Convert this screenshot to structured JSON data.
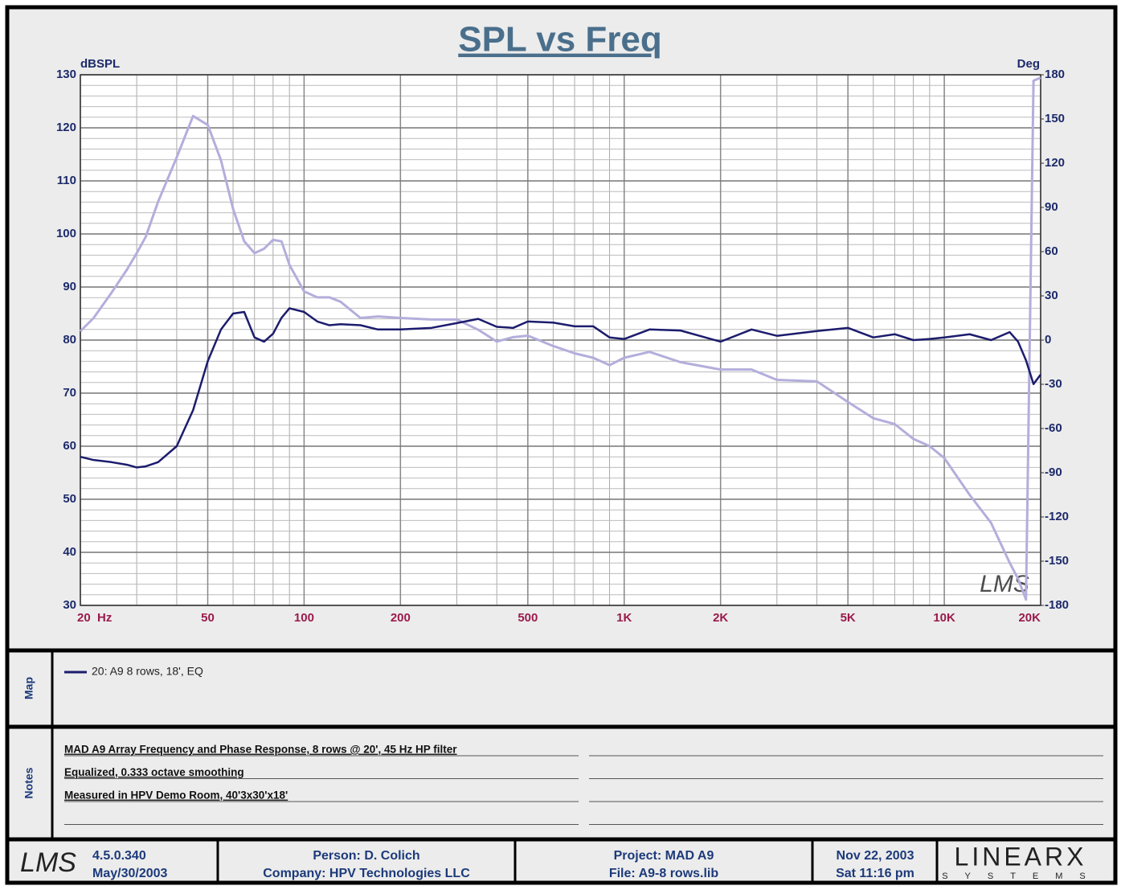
{
  "chart_data": {
    "type": "line",
    "title": "SPL vs Freq",
    "ylabel": "dBSPL",
    "y2label": "Deg",
    "xscale": "log",
    "grid": true,
    "x": [
      20,
      22,
      25,
      28,
      30,
      32,
      35,
      40,
      45,
      50,
      55,
      60,
      65,
      70,
      75,
      80,
      85,
      90,
      100,
      110,
      120,
      130,
      150,
      170,
      200,
      250,
      300,
      350,
      400,
      450,
      500,
      600,
      700,
      800,
      900,
      1000,
      1200,
      1500,
      2000,
      2500,
      3000,
      4000,
      5000,
      6000,
      7000,
      8000,
      9000,
      10000,
      12000,
      14000,
      16000,
      17000,
      18000,
      19000,
      20000
    ],
    "series": [
      {
        "name": "20: A9 8 rows, 18', EQ",
        "color": "#1c1c6e",
        "values": [
          58.0,
          57.4,
          57,
          56.5,
          56,
          56.2,
          57,
          60,
          66.8,
          76,
          82,
          85,
          85.3,
          80.5,
          79.7,
          81.2,
          84.2,
          86,
          85.3,
          83.5,
          82.8,
          83,
          82.8,
          82,
          82,
          82.3,
          83.2,
          84,
          82.5,
          82.3,
          83.5,
          83.3,
          82.6,
          82.6,
          80.5,
          80.2,
          82,
          81.8,
          79.7,
          82,
          80.8,
          81.7,
          82.3,
          80.5,
          81.1,
          80,
          80.2,
          80.5,
          81.1,
          80,
          81.5,
          79.7,
          76.2,
          71.7,
          73.5
        ]
      },
      {
        "color": "#b3aedb",
        "axis": "y2",
        "values": [
          6,
          15,
          32,
          48,
          59,
          70,
          94,
          124,
          152,
          146,
          122,
          89,
          67,
          59,
          62,
          68,
          67,
          51,
          33,
          29,
          29,
          26,
          15,
          16,
          15,
          14,
          14,
          7,
          -1,
          2,
          3,
          -4,
          -9,
          -12,
          -17,
          -12,
          -8,
          -15,
          -20,
          -20,
          -27,
          -28,
          -42,
          -53,
          -57,
          -67,
          -72,
          -80,
          -105,
          -124,
          -151,
          -162,
          -176,
          176,
          178
        ]
      }
    ],
    "xlim": [
      20,
      20000
    ],
    "xticks": [
      {
        "value": 20,
        "label": "20  Hz"
      },
      50,
      100,
      200,
      500,
      {
        "value": 1000,
        "label": "1K"
      },
      {
        "value": 2000,
        "label": "2K"
      },
      {
        "value": 5000,
        "label": "5K"
      },
      {
        "value": 10000,
        "label": "10K"
      },
      {
        "value": 20000,
        "label": "20K"
      }
    ],
    "ylim": [
      30,
      130
    ],
    "yticks": [
      30,
      40,
      50,
      60,
      70,
      80,
      90,
      100,
      110,
      120,
      130
    ],
    "y2lim": [
      -180,
      180
    ],
    "y2ticks": [
      -180,
      -150,
      -120,
      -90,
      -60,
      -30,
      0,
      30,
      60,
      90,
      120,
      150,
      180
    ]
  },
  "map": {
    "title": "Map"
  },
  "notes": {
    "title": "Notes",
    "lines": [
      "MAD A9 Array Frequency and Phase Response, 8 rows @ 20',  45 Hz HP filter",
      "Equalized, 0.333 octave smoothing",
      "Measured in HPV Demo Room, 40'3x30'x18'"
    ]
  },
  "footer": {
    "logo": "LMS",
    "version": "4.5.0.340",
    "version_date": "May/30/2003",
    "person": "Person: D. Colich",
    "company": "Company: HPV Technologies LLC",
    "project": "Project: MAD A9",
    "file": "File: A9-8 rows.lib",
    "date": "Nov 22, 2003",
    "time": "Sat 11:16 pm",
    "brand": "LINEARX",
    "brand_sub": "SYSTEMS"
  }
}
